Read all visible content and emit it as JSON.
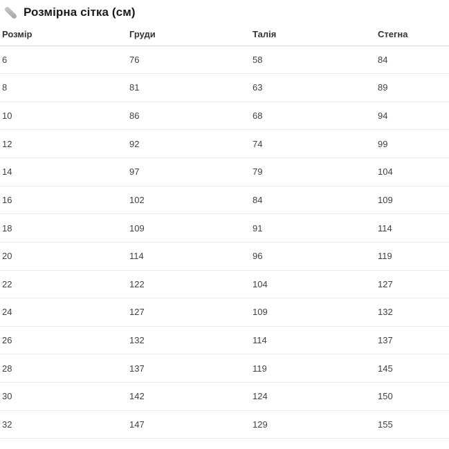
{
  "title": {
    "text": "Розмірна сітка (см)",
    "icon": "pencil-icon"
  },
  "table": {
    "columns": [
      "Розмір",
      "Груди",
      "Талія",
      "Стегна"
    ],
    "rows": [
      [
        "6",
        "76",
        "58",
        "84"
      ],
      [
        "8",
        "81",
        "63",
        "89"
      ],
      [
        "10",
        "86",
        "68",
        "94"
      ],
      [
        "12",
        "92",
        "74",
        "99"
      ],
      [
        "14",
        "97",
        "79",
        "104"
      ],
      [
        "16",
        "102",
        "84",
        "109"
      ],
      [
        "18",
        "109",
        "91",
        "114"
      ],
      [
        "20",
        "114",
        "96",
        "119"
      ],
      [
        "22",
        "122",
        "104",
        "127"
      ],
      [
        "24",
        "127",
        "109",
        "132"
      ],
      [
        "26",
        "132",
        "114",
        "137"
      ],
      [
        "28",
        "137",
        "119",
        "145"
      ],
      [
        "30",
        "142",
        "124",
        "150"
      ],
      [
        "32",
        "147",
        "129",
        "155"
      ]
    ]
  },
  "colors": {
    "header_border": "#d8d8d8",
    "row_border": "#ededed",
    "title_text": "#1b1b1b",
    "header_text": "#333333",
    "cell_text": "#414141",
    "icon_gray": "#b3b3ba"
  }
}
